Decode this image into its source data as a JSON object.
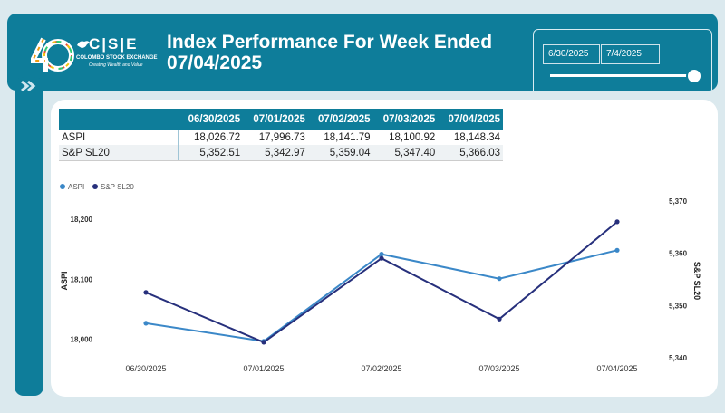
{
  "header": {
    "title_line1": "Index Performance For Week Ended",
    "title_line2": "07/04/2025",
    "logo": {
      "mark": "C|S|E",
      "name": "COLOMBO STOCK EXCHANGE",
      "tagline": "Creating Wealth and Value"
    }
  },
  "date_filter": {
    "start": "6/30/2025",
    "end": "7/4/2025"
  },
  "table": {
    "columns": [
      "06/30/2025",
      "07/01/2025",
      "07/02/2025",
      "07/03/2025",
      "07/04/2025"
    ],
    "rows": [
      {
        "label": "ASPI",
        "values": [
          "18,026.72",
          "17,996.73",
          "18,141.79",
          "18,100.92",
          "18,148.34"
        ]
      },
      {
        "label": "S&P SL20",
        "values": [
          "5,352.51",
          "5,342.97",
          "5,359.04",
          "5,347.40",
          "5,366.03"
        ]
      }
    ]
  },
  "chart_data": {
    "type": "line",
    "categories": [
      "06/30/2025",
      "07/01/2025",
      "07/02/2025",
      "07/03/2025",
      "07/04/2025"
    ],
    "series": [
      {
        "name": "ASPI",
        "axis": "left",
        "color": "#3b88c8",
        "values": [
          18026.72,
          17996.73,
          18141.79,
          18100.92,
          18148.34
        ]
      },
      {
        "name": "S&P SL20",
        "axis": "right",
        "color": "#27307c",
        "values": [
          5352.51,
          5342.97,
          5359.04,
          5347.4,
          5366.03
        ]
      }
    ],
    "ylabel_left": "ASPI",
    "ylabel_right": "S&P SL20",
    "yticks_left": [
      "18,000",
      "18,100",
      "18,200"
    ],
    "yticks_right": [
      "5,340",
      "5,350",
      "5,360",
      "5,370"
    ],
    "ylim_left": [
      17969.2,
      18230.2
    ],
    "ylim_right": [
      5340,
      5370
    ],
    "legend_position": "top-left",
    "grid": false
  },
  "colors": {
    "brand": "#0e7d9a",
    "background": "#dbe9ee",
    "aspi_line": "#3b88c8",
    "sl20_line": "#27307c"
  }
}
